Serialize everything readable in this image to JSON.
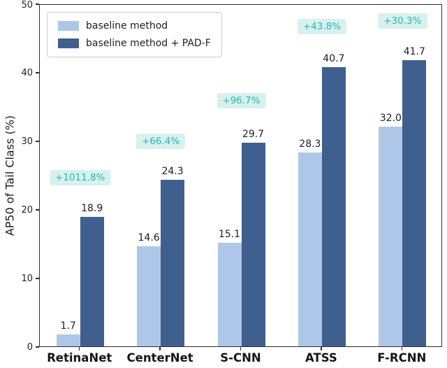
{
  "chart_data": {
    "type": "bar",
    "title": "",
    "xlabel": "",
    "ylabel": "AP50 of Tail Class (%)",
    "ylim": [
      0,
      50
    ],
    "yticks": [
      0,
      10,
      20,
      30,
      40,
      50
    ],
    "grid": false,
    "categories": [
      "RetinaNet",
      "CenterNet",
      "S-CNN",
      "ATSS",
      "F-RCNN"
    ],
    "series": [
      {
        "name": "baseline method",
        "color": "#aec7e8",
        "values": [
          1.7,
          14.6,
          15.1,
          28.3,
          32.0
        ]
      },
      {
        "name": "baseline method + PAD-F",
        "color": "#3f5f8e",
        "values": [
          18.9,
          24.3,
          29.7,
          40.7,
          41.7
        ]
      }
    ],
    "value_labels": [
      [
        "1.7",
        "14.6",
        "15.1",
        "28.3",
        "32.0"
      ],
      [
        "18.9",
        "24.3",
        "29.7",
        "40.7",
        "41.7"
      ]
    ],
    "annotations": [
      {
        "text": "+1011.8%",
        "category": "RetinaNet",
        "y": 23.5
      },
      {
        "text": "+66.4%",
        "category": "CenterNet",
        "y": 28.8
      },
      {
        "text": "+96.7%",
        "category": "S-CNN",
        "y": 34.7
      },
      {
        "text": "+43.8%",
        "category": "ATSS",
        "y": 45.5
      },
      {
        "text": "+30.3%",
        "category": "F-RCNN",
        "y": 46.3
      }
    ],
    "annotation_style": {
      "text_color": "#2cb5b0",
      "bg_color": "#d8f1ef"
    },
    "legend": {
      "position": "upper left",
      "entries": [
        "baseline method",
        "baseline method + PAD-F"
      ]
    }
  }
}
